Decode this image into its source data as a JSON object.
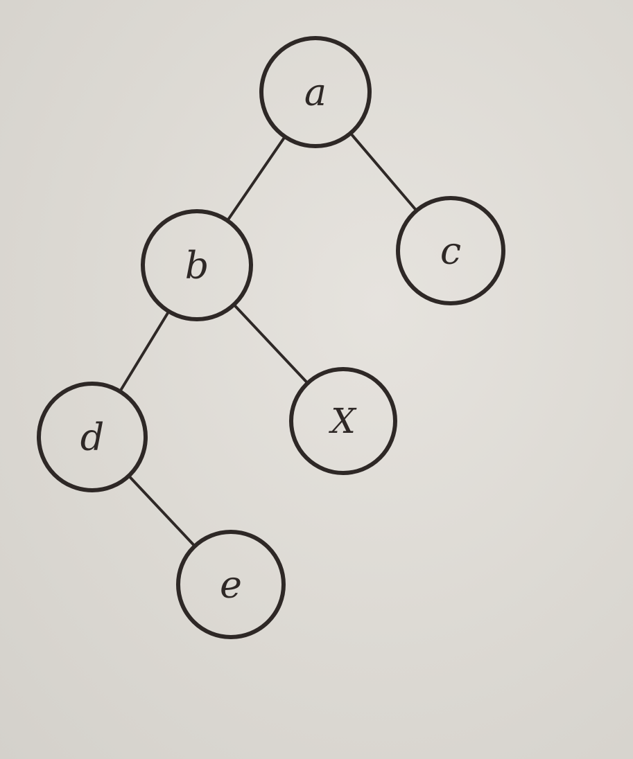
{
  "diagram": {
    "type": "binary-tree",
    "nodes": [
      {
        "id": "a",
        "label": "a"
      },
      {
        "id": "b",
        "label": "b"
      },
      {
        "id": "c",
        "label": "c"
      },
      {
        "id": "d",
        "label": "d"
      },
      {
        "id": "X",
        "label": "X"
      },
      {
        "id": "e",
        "label": "e"
      }
    ],
    "edges": [
      {
        "from": "a",
        "to": "b"
      },
      {
        "from": "a",
        "to": "c"
      },
      {
        "from": "b",
        "to": "d"
      },
      {
        "from": "b",
        "to": "X"
      },
      {
        "from": "d",
        "to": "e"
      }
    ]
  }
}
